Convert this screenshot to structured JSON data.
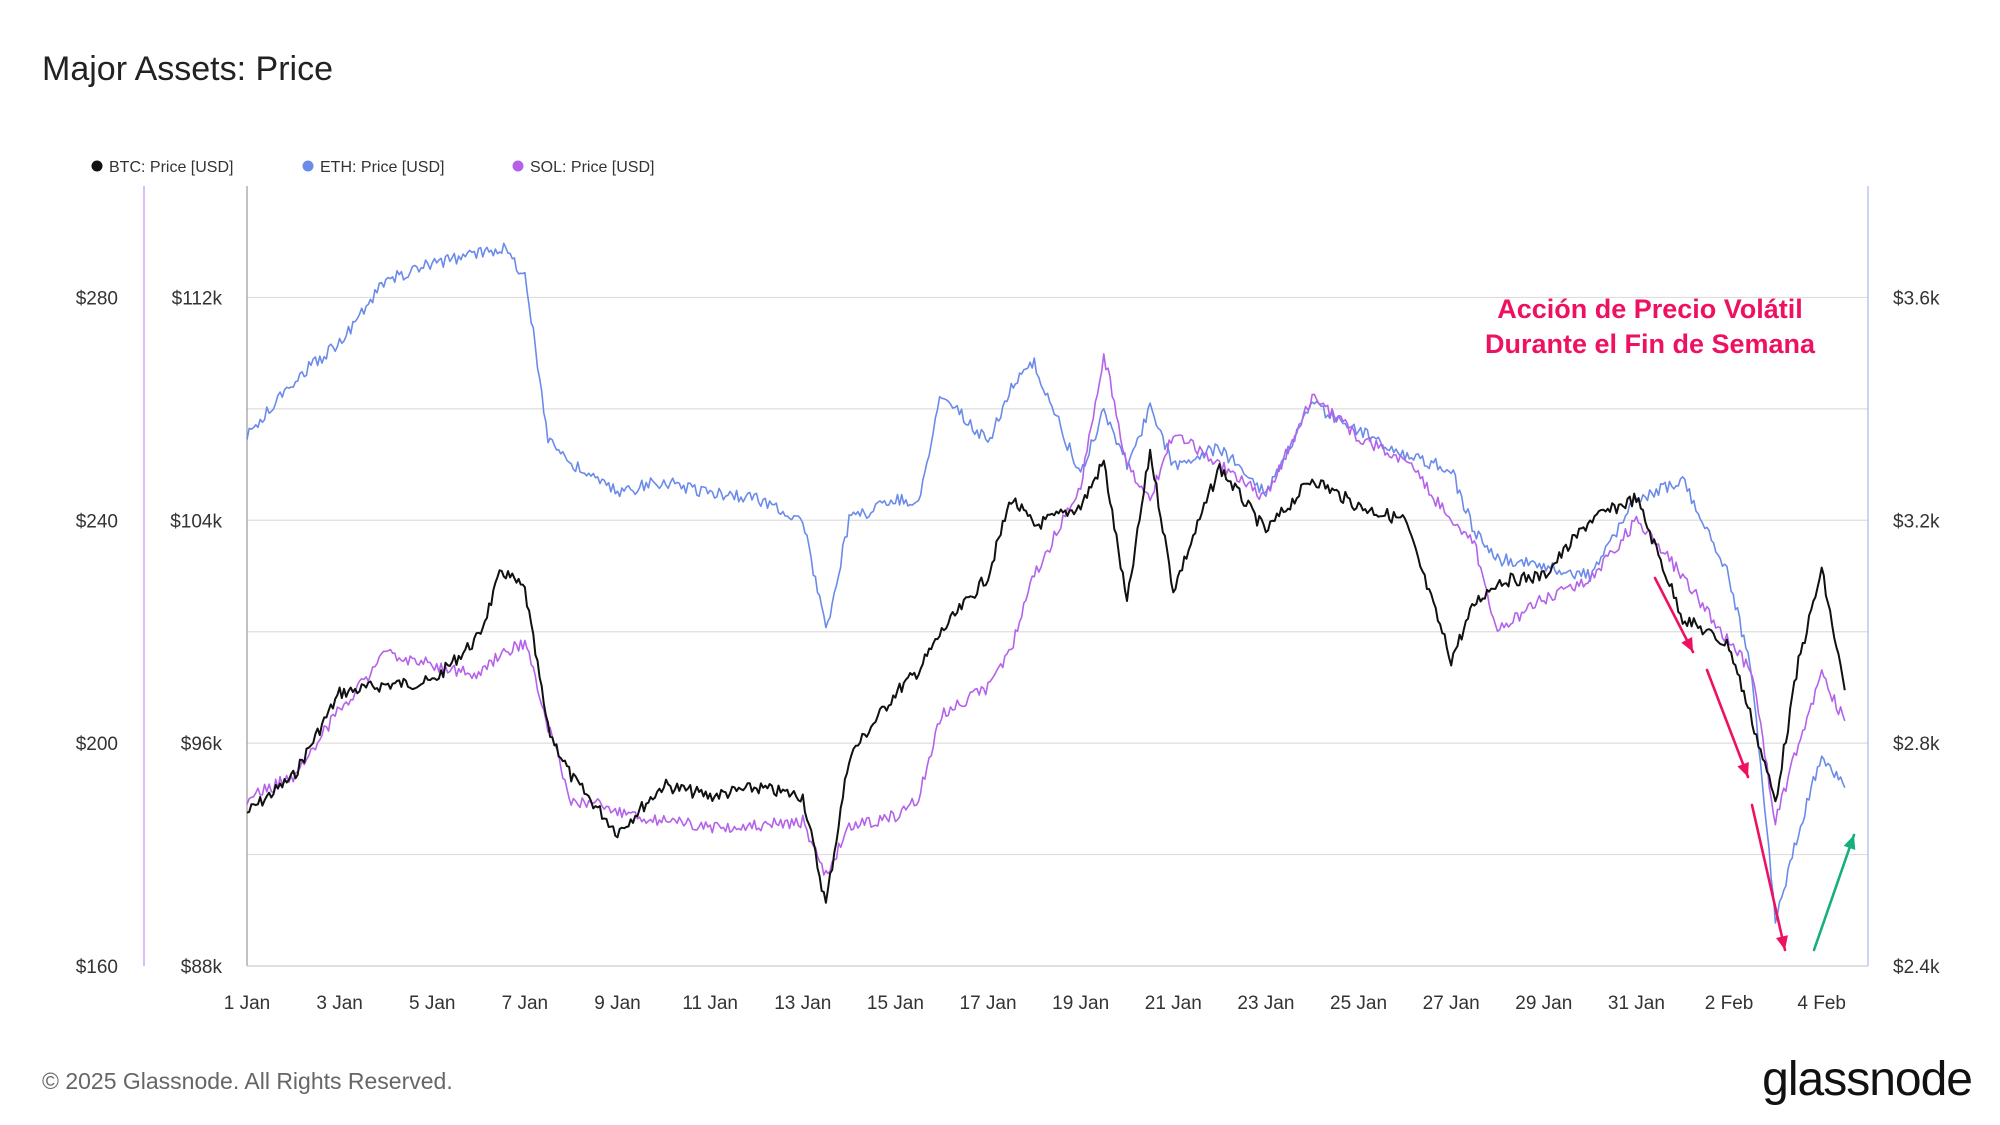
{
  "title": "Major Assets: Price",
  "footer": "© 2025 Glassnode. All Rights Reserved.",
  "logo": "glassnode",
  "colors": {
    "btc": "#111111",
    "eth": "#6b8bea",
    "sol": "#b562ea",
    "annotation": "#ee1162",
    "rebound_arrow": "#17b07a",
    "grid": "#dedede"
  },
  "chart_data": {
    "type": "line",
    "title": "Major Assets: Price",
    "legend": [
      "BTC: Price [USD]",
      "ETH: Price [USD]",
      "SOL: Price [USD]"
    ],
    "legend_position": "top-left",
    "grid": true,
    "x_range": [
      "2025-01-01",
      "2025-02-05"
    ],
    "x_ticks": [
      "1 Jan",
      "3 Jan",
      "5 Jan",
      "7 Jan",
      "9 Jan",
      "11 Jan",
      "13 Jan",
      "15 Jan",
      "17 Jan",
      "19 Jan",
      "21 Jan",
      "23 Jan",
      "25 Jan",
      "27 Jan",
      "29 Jan",
      "31 Jan",
      "2 Feb",
      "4 Feb"
    ],
    "axes": {
      "sol_left": {
        "ticks": [
          "$280",
          "$240",
          "$200",
          "$160"
        ],
        "range": [
          160,
          300
        ]
      },
      "btc_left": {
        "ticks": [
          "$112k",
          "$104k",
          "$96k",
          "$88k"
        ],
        "range": [
          88000,
          116000
        ]
      },
      "eth_right": {
        "ticks": [
          "$3.6k",
          "$3.2k",
          "$2.8k",
          "$2.4k"
        ],
        "range": [
          2400,
          3800
        ]
      }
    },
    "annotation": [
      "Acción de Precio Volátil",
      "Durante el Fin de Semana"
    ],
    "series": [
      {
        "name": "BTC: Price [USD]",
        "axis": "btc_left",
        "x": [
          "2025-01-01",
          "2025-01-02",
          "2025-01-03",
          "2025-01-04",
          "2025-01-05",
          "2025-01-06",
          "2025-01-06T12:00",
          "2025-01-07",
          "2025-01-07T12:00",
          "2025-01-08",
          "2025-01-09",
          "2025-01-10",
          "2025-01-11",
          "2025-01-12",
          "2025-01-13",
          "2025-01-13T12:00",
          "2025-01-14",
          "2025-01-15",
          "2025-01-15T12:00",
          "2025-01-16",
          "2025-01-17",
          "2025-01-17T12:00",
          "2025-01-18",
          "2025-01-19",
          "2025-01-19T12:00",
          "2025-01-20",
          "2025-01-20T12:00",
          "2025-01-21",
          "2025-01-22",
          "2025-01-23",
          "2025-01-24",
          "2025-01-25",
          "2025-01-26",
          "2025-01-27",
          "2025-01-27T12:00",
          "2025-01-28",
          "2025-01-29",
          "2025-01-30",
          "2025-01-31",
          "2025-02-01",
          "2025-02-02",
          "2025-02-02T12:00",
          "2025-02-03",
          "2025-02-03T12:00",
          "2025-02-04",
          "2025-02-04T12:00"
        ],
        "values": [
          93500,
          94800,
          97800,
          98100,
          98200,
          99800,
          102200,
          101500,
          96500,
          94800,
          92800,
          94500,
          94100,
          94400,
          94100,
          90200,
          95500,
          97800,
          98600,
          100000,
          102000,
          104800,
          103800,
          104500,
          106100,
          101000,
          106500,
          101500,
          105900,
          103600,
          105500,
          104500,
          104000,
          99000,
          101000,
          101800,
          102000,
          104000,
          104800,
          100500,
          99500,
          96800,
          93900,
          98900,
          102200,
          97900
        ]
      },
      {
        "name": "ETH: Price [USD]",
        "axis": "eth_right",
        "x": [
          "2025-01-01",
          "2025-01-02",
          "2025-01-03",
          "2025-01-04",
          "2025-01-05",
          "2025-01-06",
          "2025-01-06T12:00",
          "2025-01-07",
          "2025-01-07T12:00",
          "2025-01-08",
          "2025-01-09",
          "2025-01-10",
          "2025-01-11",
          "2025-01-12",
          "2025-01-13",
          "2025-01-13T12:00",
          "2025-01-14",
          "2025-01-15",
          "2025-01-15T12:00",
          "2025-01-16",
          "2025-01-17",
          "2025-01-17T12:00",
          "2025-01-18",
          "2025-01-19",
          "2025-01-19T12:00",
          "2025-01-20",
          "2025-01-20T12:00",
          "2025-01-21",
          "2025-01-22",
          "2025-01-23",
          "2025-01-24",
          "2025-01-25",
          "2025-01-26",
          "2025-01-27",
          "2025-01-27T12:00",
          "2025-01-28",
          "2025-01-29",
          "2025-01-30",
          "2025-01-31",
          "2025-02-01",
          "2025-02-02",
          "2025-02-02T12:00",
          "2025-02-03",
          "2025-02-03T12:00",
          "2025-02-04",
          "2025-02-04T12:00"
        ],
        "values": [
          3350,
          3450,
          3520,
          3630,
          3660,
          3680,
          3690,
          3640,
          3350,
          3300,
          3250,
          3270,
          3250,
          3240,
          3200,
          3000,
          3200,
          3240,
          3230,
          3430,
          3340,
          3440,
          3480,
          3280,
          3400,
          3300,
          3400,
          3300,
          3330,
          3250,
          3410,
          3360,
          3320,
          3290,
          3180,
          3130,
          3120,
          3100,
          3240,
          3270,
          3100,
          2920,
          2480,
          2640,
          2780,
          2720
        ]
      },
      {
        "name": "SOL: Price [USD]",
        "axis": "sol_left",
        "x": [
          "2025-01-01",
          "2025-01-02",
          "2025-01-03",
          "2025-01-04",
          "2025-01-05",
          "2025-01-06",
          "2025-01-06T12:00",
          "2025-01-07",
          "2025-01-07T12:00",
          "2025-01-08",
          "2025-01-09",
          "2025-01-10",
          "2025-01-11",
          "2025-01-12",
          "2025-01-13",
          "2025-01-13T12:00",
          "2025-01-14",
          "2025-01-15",
          "2025-01-15T12:00",
          "2025-01-16",
          "2025-01-17",
          "2025-01-17T12:00",
          "2025-01-18",
          "2025-01-19",
          "2025-01-19T12:00",
          "2025-01-20",
          "2025-01-20T12:00",
          "2025-01-21",
          "2025-01-22",
          "2025-01-23",
          "2025-01-24",
          "2025-01-25",
          "2025-01-26",
          "2025-01-27",
          "2025-01-27T12:00",
          "2025-01-28",
          "2025-01-29",
          "2025-01-30",
          "2025-01-31",
          "2025-02-01",
          "2025-02-02",
          "2025-02-02T12:00",
          "2025-02-03",
          "2025-02-03T12:00",
          "2025-02-04",
          "2025-02-04T12:00"
        ],
        "values": [
          190,
          194,
          206,
          216,
          214,
          212,
          216,
          218,
          203,
          190,
          188,
          186,
          185,
          185,
          186,
          176,
          185,
          187,
          190,
          205,
          210,
          217,
          230,
          246,
          270,
          250,
          244,
          256,
          250,
          244,
          262,
          255,
          251,
          240,
          236,
          220,
          226,
          229,
          240,
          230,
          218,
          213,
          186,
          200,
          212,
          204
        ]
      }
    ]
  }
}
